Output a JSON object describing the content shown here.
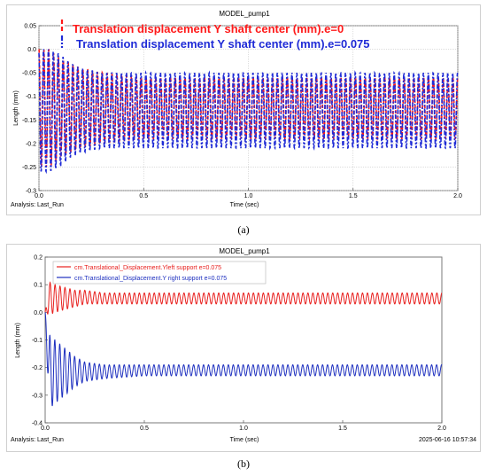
{
  "colors": {
    "red": "#ff1a1a",
    "blue": "#1f2bd6",
    "red_b": "#e8201e",
    "blue_b": "#1d2fbf",
    "grid": "#c8c8c8"
  },
  "captions": {
    "a": "(a)",
    "b": "(b)"
  },
  "chart_data": [
    {
      "type": "line",
      "title": "MODEL_pump1",
      "xlabel": "Time (sec)",
      "ylabel": "Length (mm)",
      "xlim": [
        0.0,
        2.0
      ],
      "ylim": [
        -0.3,
        0.05
      ],
      "xticks": [
        "0.0",
        "0.5",
        "1.0",
        "1.5",
        "2.0"
      ],
      "yticks": [
        "0.05",
        "0.0",
        "-0.05",
        "-0.1",
        "-0.15",
        "-0.2",
        "-0.25",
        "-0.3"
      ],
      "footer_left": "Analysis:  Last_Run",
      "grid": true,
      "legend_position": "top-left",
      "series": [
        {
          "name": "Translation displacement Y shaft center (mm).e=0",
          "style": "dashed",
          "color": "red",
          "x": [
            0.0,
            0.05,
            0.1,
            0.15,
            0.2,
            0.3,
            0.5,
            1.0,
            1.5,
            2.0
          ],
          "min": [
            -0.25,
            -0.25,
            -0.23,
            -0.22,
            -0.21,
            -0.2,
            -0.19,
            -0.19,
            -0.19,
            -0.19
          ],
          "max": [
            0.0,
            0.0,
            -0.02,
            -0.03,
            -0.04,
            -0.05,
            -0.06,
            -0.06,
            -0.06,
            -0.06
          ],
          "cycles": 86
        },
        {
          "name": "Translation displacement Y shaft center (mm).e=0.075",
          "style": "dashdot",
          "color": "blue",
          "x": [
            0.0,
            0.05,
            0.1,
            0.15,
            0.2,
            0.3,
            0.5,
            1.0,
            1.5,
            2.0
          ],
          "min": [
            -0.26,
            -0.26,
            -0.25,
            -0.23,
            -0.22,
            -0.21,
            -0.21,
            -0.21,
            -0.21,
            -0.21
          ],
          "max": [
            0.0,
            0.0,
            -0.01,
            -0.03,
            -0.04,
            -0.05,
            -0.05,
            -0.05,
            -0.05,
            -0.05
          ],
          "cycles": 86
        }
      ]
    },
    {
      "type": "line",
      "title": "MODEL_pump1",
      "xlabel": "Time (sec)",
      "ylabel": "Length (mm)",
      "xlim": [
        0.0,
        2.0
      ],
      "ylim": [
        -0.4,
        0.2
      ],
      "xticks": [
        "0.0",
        "0.5",
        "1.0",
        "1.5",
        "2.0"
      ],
      "yticks": [
        "0.2",
        "0.1",
        "0.0",
        "-0.1",
        "-0.2",
        "-0.3",
        "-0.4"
      ],
      "footer_left": "Analysis:  Last_Run",
      "footer_right": "2025-06-16 10:57:34",
      "grid": false,
      "legend_position": "top-left",
      "series": [
        {
          "name": "cm.Translational_Displacement.Yleft support e=0.075",
          "style": "solid",
          "color": "red_b",
          "x": [
            0.0,
            0.02,
            0.05,
            0.1,
            0.15,
            0.2,
            0.3,
            0.5,
            1.0,
            1.5,
            2.0
          ],
          "min": [
            0.0,
            -0.01,
            0.0,
            0.01,
            0.02,
            0.03,
            0.03,
            0.03,
            0.03,
            0.03,
            0.03
          ],
          "max": [
            0.0,
            0.11,
            0.1,
            0.09,
            0.08,
            0.08,
            0.07,
            0.07,
            0.07,
            0.07,
            0.07
          ],
          "cycles": 80
        },
        {
          "name": "cm.Translational_Displacement.Y right support e=0.075",
          "style": "solid",
          "color": "blue_b",
          "x": [
            0.0,
            0.02,
            0.05,
            0.1,
            0.15,
            0.2,
            0.3,
            0.5,
            1.0,
            1.5,
            2.0
          ],
          "min": [
            0.0,
            -0.35,
            -0.33,
            -0.3,
            -0.27,
            -0.25,
            -0.24,
            -0.23,
            -0.23,
            -0.23,
            -0.23
          ],
          "max": [
            0.0,
            -0.08,
            -0.1,
            -0.13,
            -0.16,
            -0.18,
            -0.19,
            -0.19,
            -0.19,
            -0.19,
            -0.19
          ],
          "cycles": 80
        }
      ]
    }
  ]
}
